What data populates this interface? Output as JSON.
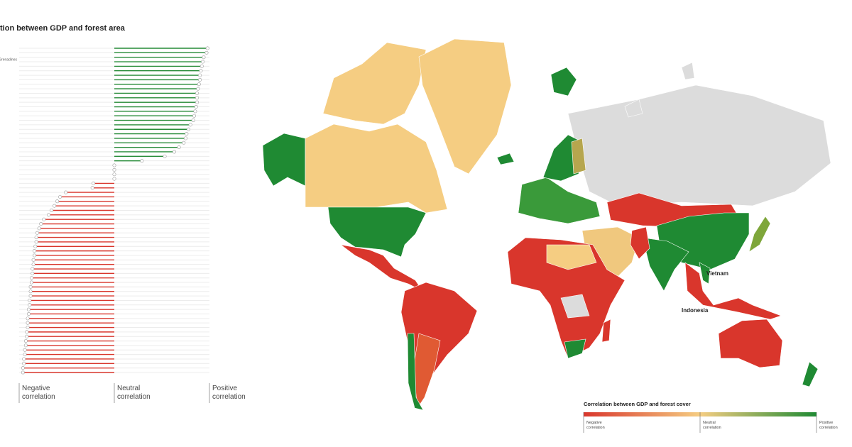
{
  "chart_data": [
    {
      "type": "lollipop",
      "title": "tion between GDP and forest area",
      "categories": [
        null,
        "Grenadines",
        null,
        null,
        null,
        null,
        null,
        null,
        null,
        null,
        null,
        null,
        null,
        null,
        null,
        null,
        null,
        null,
        null,
        null,
        null,
        null,
        null,
        null,
        null,
        null,
        null,
        null,
        null,
        null,
        null,
        null,
        null,
        null,
        null,
        null,
        null,
        null,
        null,
        null,
        null,
        null,
        null,
        null,
        null,
        null,
        null,
        null,
        null,
        null,
        null,
        null,
        null,
        null,
        null,
        null,
        null,
        null,
        null,
        null,
        null,
        null,
        null,
        null,
        null,
        null,
        null,
        null,
        null,
        null,
        null,
        null,
        null
      ],
      "values": [
        0.98,
        0.97,
        0.94,
        0.93,
        0.92,
        0.91,
        0.9,
        0.9,
        0.89,
        0.88,
        0.87,
        0.87,
        0.87,
        0.86,
        0.85,
        0.84,
        0.83,
        0.8,
        0.78,
        0.76,
        0.75,
        0.73,
        0.68,
        0.63,
        0.53,
        0.29,
        0,
        0,
        0,
        0,
        -0.22,
        -0.23,
        -0.51,
        -0.57,
        -0.6,
        -0.63,
        -0.66,
        -0.69,
        -0.74,
        -0.77,
        -0.79,
        -0.81,
        -0.82,
        -0.82,
        -0.83,
        -0.84,
        -0.84,
        -0.85,
        -0.85,
        -0.86,
        -0.86,
        -0.87,
        -0.87,
        -0.88,
        -0.88,
        -0.88,
        -0.89,
        -0.89,
        -0.9,
        -0.9,
        -0.91,
        -0.91,
        -0.91,
        -0.92,
        -0.92,
        -0.93,
        -0.93,
        -0.94,
        -0.94,
        -0.95,
        -0.95,
        -0.96,
        -0.96
      ],
      "colors": {
        "positive": "#258a36",
        "negative": "#d9362c",
        "neutral": "#c8c8c8"
      },
      "xlim": [
        -1,
        1
      ],
      "xticks": [
        {
          "value": -1,
          "label": "Negative correlation"
        },
        {
          "value": 0,
          "label": "Neutral correlation"
        },
        {
          "value": 1,
          "label": "Positive correlation"
        }
      ]
    },
    {
      "type": "map",
      "annotations": [
        "Vietnam",
        "Indonesia"
      ],
      "legend_title": "Correlation between GDP and forest cover",
      "legend_labels": [
        "Negative correlation",
        "Neutral correlation",
        "Positive correlation"
      ]
    }
  ]
}
